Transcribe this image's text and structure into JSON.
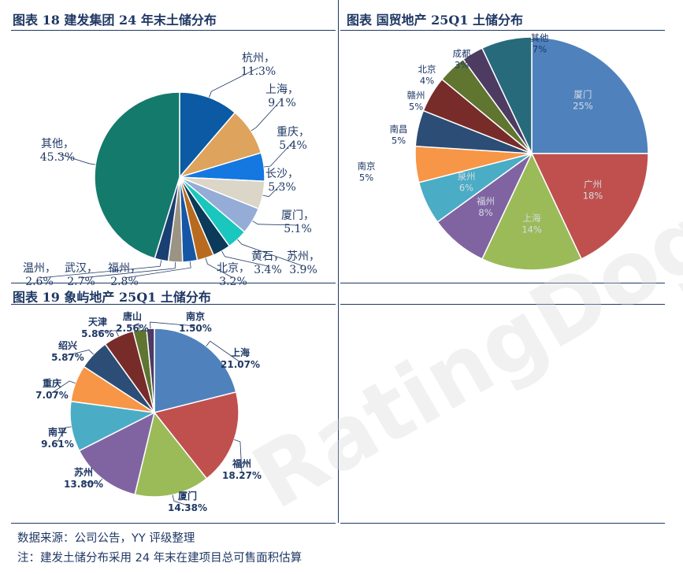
{
  "panels": {
    "p1_title": "图表 18 建发集团 24 年末土储分布",
    "p2_title": "图表 国贸地产 25Q1 土储分布",
    "p3_title": "图表 19 象屿地产 25Q1 土储分布"
  },
  "footer": {
    "source": "数据来源：公司公告，YY 评级整理",
    "note": "注：建发土储分布采用 24 年末在建项目总可售面积估算"
  },
  "watermark": "RatingDog",
  "chart_data": [
    {
      "type": "pie",
      "title": "图表 18 建发集团 24 年末土储分布",
      "unit": "%",
      "slices": [
        {
          "label": "杭州",
          "value": 11.3,
          "value_text": "11.3%",
          "color": "#0b5aa3"
        },
        {
          "label": "上海",
          "value": 9.1,
          "value_text": "9.1%",
          "color": "#dea35c"
        },
        {
          "label": "重庆",
          "value": 5.4,
          "value_text": "5.4%",
          "color": "#1577e0"
        },
        {
          "label": "长沙",
          "value": 5.3,
          "value_text": "5.3%",
          "color": "#dcd6c8"
        },
        {
          "label": "厦门",
          "value": 5.1,
          "value_text": "5.1%",
          "color": "#94acd6"
        },
        {
          "label": "苏州",
          "value": 3.9,
          "value_text": "3.9%",
          "color": "#19c7be"
        },
        {
          "label": "黄石",
          "value": 3.4,
          "value_text": "3.4%",
          "color": "#0b3a5a"
        },
        {
          "label": "北京",
          "value": 3.2,
          "value_text": "3.2%",
          "color": "#b86b1e"
        },
        {
          "label": "福州",
          "value": 2.8,
          "value_text": "2.8%",
          "color": "#1557a6"
        },
        {
          "label": "武汉",
          "value": 2.7,
          "value_text": "2.7%",
          "color": "#9b9384"
        },
        {
          "label": "温州",
          "value": 2.6,
          "value_text": "2.6%",
          "color": "#1a3f72"
        },
        {
          "label": "其他",
          "value": 45.3,
          "value_text": "45.3%",
          "color": "#147a6c"
        }
      ]
    },
    {
      "type": "pie",
      "title": "图表 国贸地产 25Q1 土储分布",
      "unit": "%",
      "slices": [
        {
          "label": "厦门",
          "value": 25,
          "value_text": "25%",
          "color": "#4f81bd"
        },
        {
          "label": "广州",
          "value": 18,
          "value_text": "18%",
          "color": "#c0504d"
        },
        {
          "label": "上海",
          "value": 14,
          "value_text": "14%",
          "color": "#9bbb59"
        },
        {
          "label": "福州",
          "value": 8,
          "value_text": "8%",
          "color": "#8064a2"
        },
        {
          "label": "泉州",
          "value": 6,
          "value_text": "6%",
          "color": "#4bacc6"
        },
        {
          "label": "南京",
          "value": 5,
          "value_text": "5%",
          "color": "#f79646"
        },
        {
          "label": "南昌",
          "value": 5,
          "value_text": "5%",
          "color": "#2c4d75"
        },
        {
          "label": "赣州",
          "value": 5,
          "value_text": "5%",
          "color": "#772c2a"
        },
        {
          "label": "北京",
          "value": 4,
          "value_text": "4%",
          "color": "#5f7530"
        },
        {
          "label": "成都",
          "value": 3,
          "value_text": "3%",
          "color": "#4d3b62"
        },
        {
          "label": "其他",
          "value": 7,
          "value_text": "7%",
          "color": "#276a7c"
        }
      ]
    },
    {
      "type": "pie",
      "title": "图表 19 象屿地产 25Q1 土储分布",
      "unit": "%",
      "slices": [
        {
          "label": "上海",
          "value": 21.07,
          "value_text": "21.07%",
          "color": "#4f81bd"
        },
        {
          "label": "福州",
          "value": 18.27,
          "value_text": "18.27%",
          "color": "#c0504d"
        },
        {
          "label": "厦门",
          "value": 14.38,
          "value_text": "14.38%",
          "color": "#9bbb59"
        },
        {
          "label": "苏州",
          "value": 13.8,
          "value_text": "13.80%",
          "color": "#8064a2"
        },
        {
          "label": "南平",
          "value": 9.61,
          "value_text": "9.61%",
          "color": "#4bacc6"
        },
        {
          "label": "重庆",
          "value": 7.07,
          "value_text": "7.07%",
          "color": "#f79646"
        },
        {
          "label": "绍兴",
          "value": 5.87,
          "value_text": "5.87%",
          "color": "#2c4d75"
        },
        {
          "label": "天津",
          "value": 5.86,
          "value_text": "5.86%",
          "color": "#772c2a"
        },
        {
          "label": "唐山",
          "value": 2.56,
          "value_text": "2.56%",
          "color": "#5f7530"
        },
        {
          "label": "南京",
          "value": 1.5,
          "value_text": "1.50%",
          "color": "#4d3b62"
        }
      ]
    }
  ]
}
